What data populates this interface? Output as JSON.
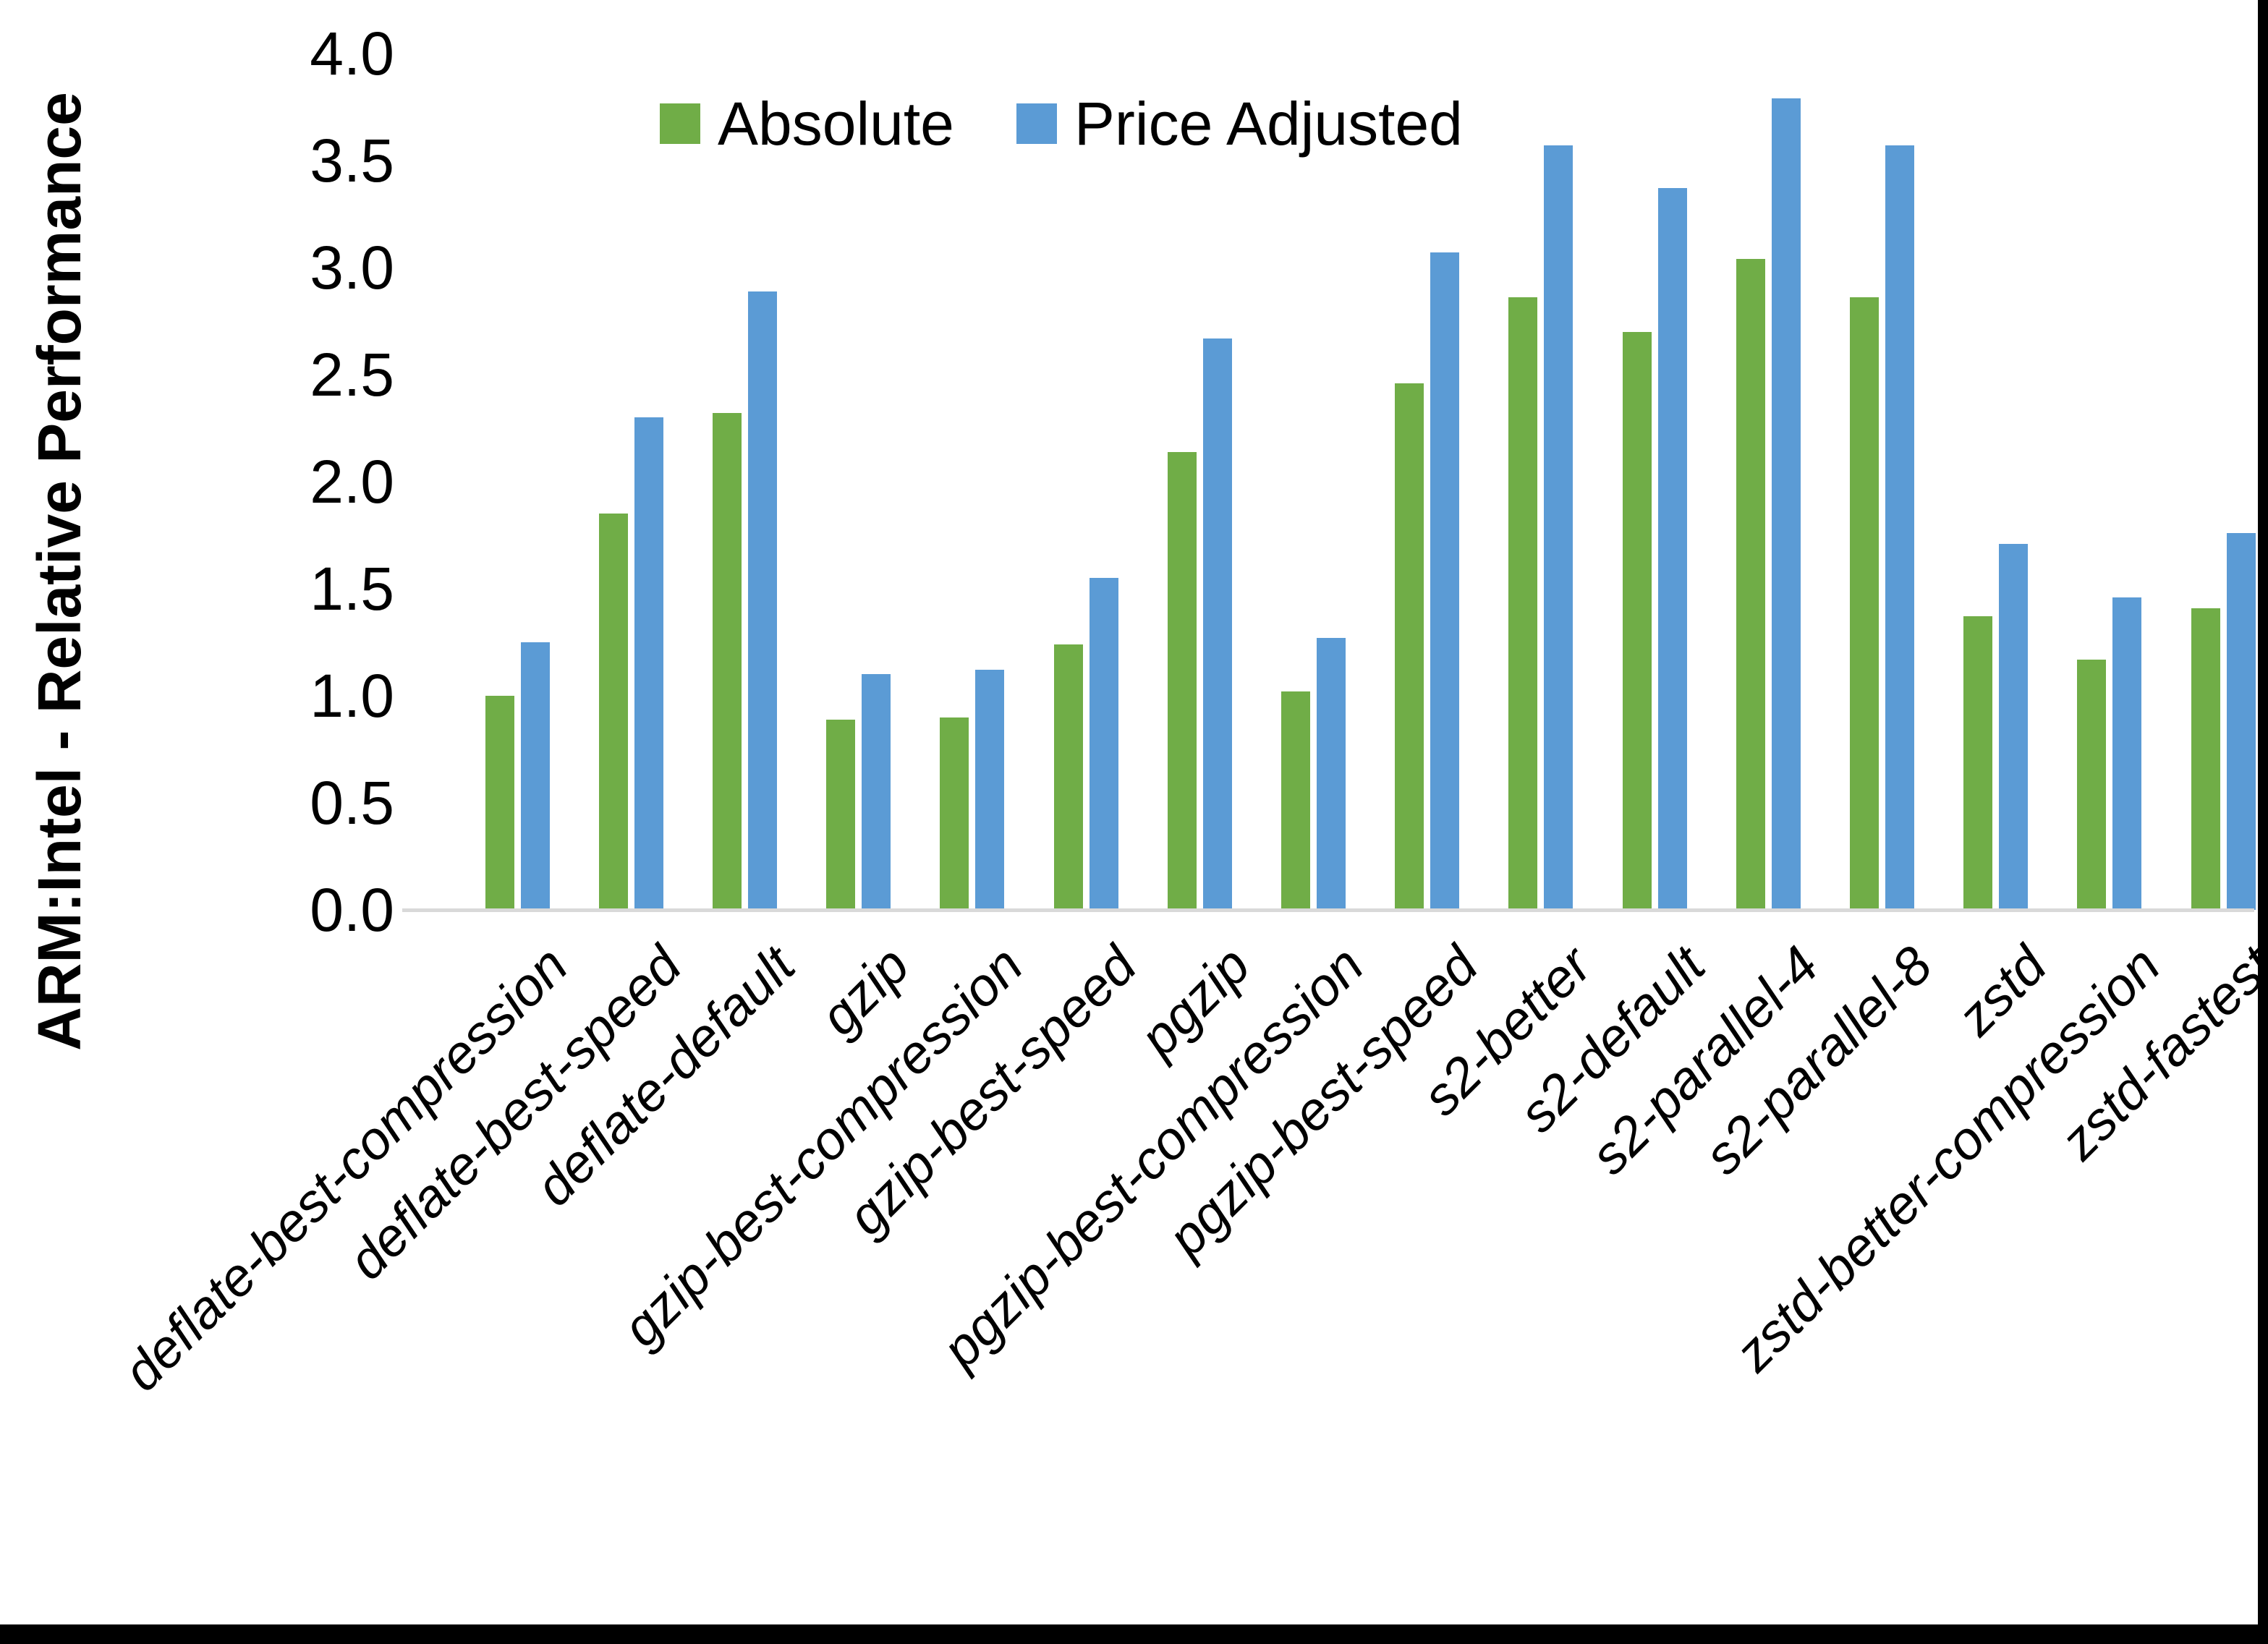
{
  "chart_data": {
    "type": "bar",
    "title": "",
    "ylabel": "ARM:Intel - Relative Performance",
    "xlabel": "",
    "ylim": [
      0,
      4
    ],
    "yticks": [
      "0.0",
      "0.5",
      "1.0",
      "1.5",
      "2.0",
      "2.5",
      "3.0",
      "3.5",
      "4.0"
    ],
    "grid": false,
    "legend_position": "top-center",
    "categories": [
      "deflate-best-compression",
      "deflate-best-speed",
      "deflate-default",
      "gzip",
      "gzip-best-compression",
      "gzip-best-speed",
      "pgzip",
      "pgzip-best-compression",
      "pgzip-best-speed",
      "s2-better",
      "s2-default",
      "s2-parallel-4",
      "s2-parallel-8",
      "zstd",
      "zstd-better-compression",
      "zstd-fastest"
    ],
    "series": [
      {
        "name": "Absolute",
        "color": "#70AD47",
        "values": [
          1.0,
          1.85,
          2.32,
          0.89,
          0.9,
          1.24,
          2.14,
          1.02,
          2.46,
          2.86,
          2.7,
          3.04,
          2.86,
          1.37,
          1.17,
          1.41
        ]
      },
      {
        "name": "Price Adjusted",
        "color": "#5B9BD5",
        "values": [
          1.25,
          2.3,
          2.89,
          1.1,
          1.12,
          1.55,
          2.67,
          1.27,
          3.07,
          3.57,
          3.37,
          3.79,
          3.57,
          1.71,
          1.46,
          1.76
        ]
      }
    ],
    "axis_line_color": "#d9d9d9"
  },
  "frame": {
    "background": "#ffffff",
    "edge_color": "#000000"
  }
}
